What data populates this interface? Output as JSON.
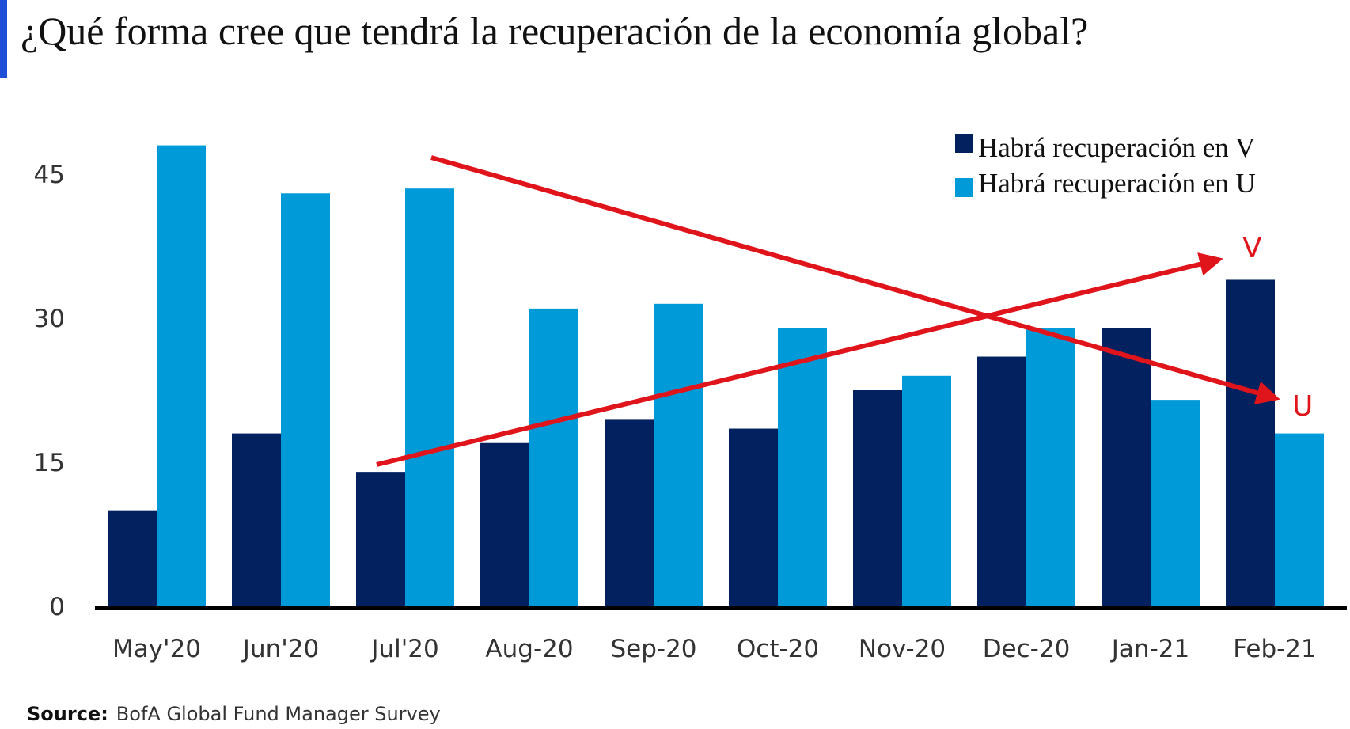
{
  "chart_data": {
    "type": "bar",
    "title": "¿Qué forma cree que tendrá la recuperación de la economía global?",
    "categories": [
      "May'20",
      "Jun'20",
      "Jul'20",
      "Aug-20",
      "Sep-20",
      "Oct-20",
      "Nov-20",
      "Dec-20",
      "Jan-21",
      "Feb-21"
    ],
    "series": [
      {
        "name": "Habrá recuperación en V",
        "color": "#03205f",
        "values": [
          10,
          18,
          14,
          17,
          19.5,
          18.5,
          22.5,
          26,
          29,
          34
        ]
      },
      {
        "name": "Habrá recuperación en U",
        "color": "#009ad9",
        "values": [
          48,
          43,
          43.5,
          31,
          31.5,
          29,
          24,
          29,
          21.5,
          18
        ]
      }
    ],
    "ylim": [
      0,
      50
    ],
    "yticks": [
      0,
      15,
      30,
      45
    ],
    "grid": false,
    "legend": "top-right",
    "annotations": [
      {
        "label": "V",
        "from": "Jul'20",
        "to": "Feb-21",
        "trend": "up",
        "color": "#e0141b"
      },
      {
        "label": "U",
        "from": "Jul'20",
        "to": "Feb-21",
        "trend": "down",
        "color": "#e0141b"
      }
    ],
    "source_label": "Source:",
    "source": "BofA Global Fund Manager Survey"
  }
}
